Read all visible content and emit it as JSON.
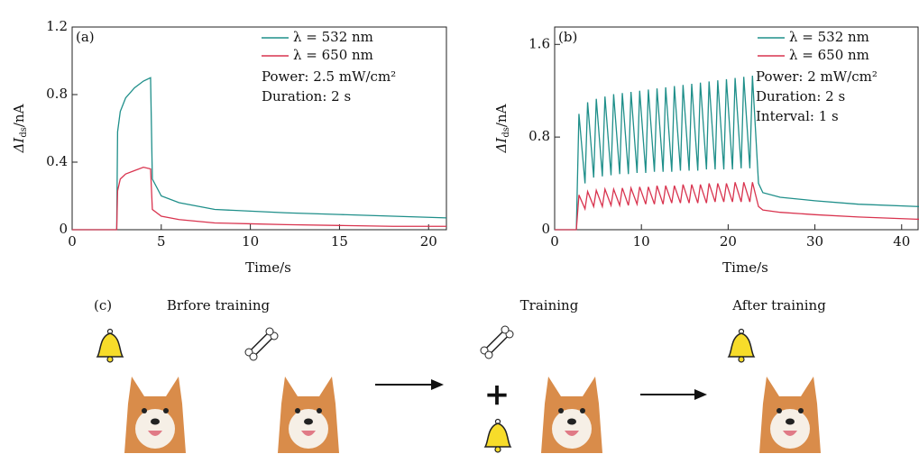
{
  "chart_data": [
    {
      "type": "line",
      "panel_label": "(a)",
      "ylabel": {
        "main": "ΔI",
        "sub": "ds",
        "unit": "/nA"
      },
      "xlabel": "Time/s",
      "xlim": [
        0,
        21
      ],
      "xticks": [
        0,
        5,
        10,
        15,
        20
      ],
      "ylim": [
        0,
        1.2
      ],
      "yticks": [
        0,
        0.4,
        0.8,
        1.2
      ],
      "annotations": [
        "Power: 2.5 mW/cm²",
        "Duration: 2 s"
      ],
      "x": [
        0,
        2.5,
        2.55,
        2.7,
        3,
        3.5,
        4,
        4.4,
        4.5,
        5,
        6,
        8,
        10,
        12,
        15,
        18,
        21
      ],
      "series": [
        {
          "name": "λ = 532 nm",
          "color": "#1f8f8a",
          "values": [
            0,
            0,
            0.58,
            0.7,
            0.78,
            0.84,
            0.88,
            0.9,
            0.3,
            0.2,
            0.16,
            0.12,
            0.11,
            0.1,
            0.09,
            0.08,
            0.07
          ]
        },
        {
          "name": "λ = 650 nm",
          "color": "#d9344f",
          "values": [
            0,
            0,
            0.23,
            0.3,
            0.33,
            0.35,
            0.37,
            0.36,
            0.12,
            0.08,
            0.06,
            0.04,
            0.035,
            0.03,
            0.025,
            0.02,
            0.02
          ]
        }
      ]
    },
    {
      "type": "line",
      "panel_label": "(b)",
      "ylabel": {
        "main": "ΔI",
        "sub": "ds",
        "unit": "/nA"
      },
      "xlabel": "Time/s",
      "xlim": [
        0,
        42
      ],
      "xticks": [
        0,
        10,
        20,
        30,
        40
      ],
      "ylim": [
        0,
        1.75
      ],
      "yticks": [
        0,
        0.8,
        1.6
      ],
      "annotations": [
        "Power: 2 mW/cm²",
        "Duration: 2 s",
        "Interval: 1 s"
      ],
      "x": [
        0,
        2.5,
        2.8,
        3.5,
        3.8,
        4.5,
        4.8,
        5.5,
        5.8,
        6.5,
        6.8,
        7.5,
        7.8,
        8.5,
        8.8,
        9.5,
        9.8,
        10.5,
        10.8,
        11.5,
        11.8,
        12.5,
        12.8,
        13.5,
        13.8,
        14.5,
        14.8,
        15.5,
        15.8,
        16.5,
        16.8,
        17.5,
        17.8,
        18.5,
        18.8,
        19.5,
        19.8,
        20.5,
        20.8,
        21.5,
        21.8,
        22.5,
        22.8,
        23.5,
        24,
        26,
        30,
        35,
        42
      ],
      "series": [
        {
          "name": "λ = 532 nm",
          "color": "#1f8f8a",
          "values": [
            0,
            0,
            1.0,
            0.4,
            1.1,
            0.45,
            1.13,
            0.46,
            1.15,
            0.47,
            1.17,
            0.48,
            1.18,
            0.48,
            1.19,
            0.49,
            1.2,
            0.49,
            1.21,
            0.5,
            1.22,
            0.5,
            1.23,
            0.5,
            1.24,
            0.51,
            1.25,
            0.51,
            1.26,
            0.51,
            1.27,
            0.52,
            1.28,
            0.52,
            1.29,
            0.52,
            1.3,
            0.52,
            1.31,
            0.53,
            1.32,
            0.53,
            1.33,
            0.4,
            0.32,
            0.28,
            0.25,
            0.22,
            0.2
          ]
        },
        {
          "name": "λ = 650 nm",
          "color": "#d9344f",
          "values": [
            0,
            0,
            0.3,
            0.18,
            0.33,
            0.2,
            0.34,
            0.2,
            0.35,
            0.21,
            0.35,
            0.21,
            0.36,
            0.21,
            0.36,
            0.22,
            0.37,
            0.22,
            0.37,
            0.22,
            0.38,
            0.22,
            0.38,
            0.23,
            0.38,
            0.23,
            0.39,
            0.23,
            0.39,
            0.23,
            0.39,
            0.23,
            0.4,
            0.24,
            0.4,
            0.24,
            0.4,
            0.24,
            0.41,
            0.24,
            0.41,
            0.24,
            0.41,
            0.2,
            0.17,
            0.15,
            0.13,
            0.11,
            0.09
          ]
        }
      ]
    }
  ],
  "panel_c": {
    "label": "(c)",
    "captions": [
      "Brfore training",
      "Training",
      "After training"
    ]
  }
}
